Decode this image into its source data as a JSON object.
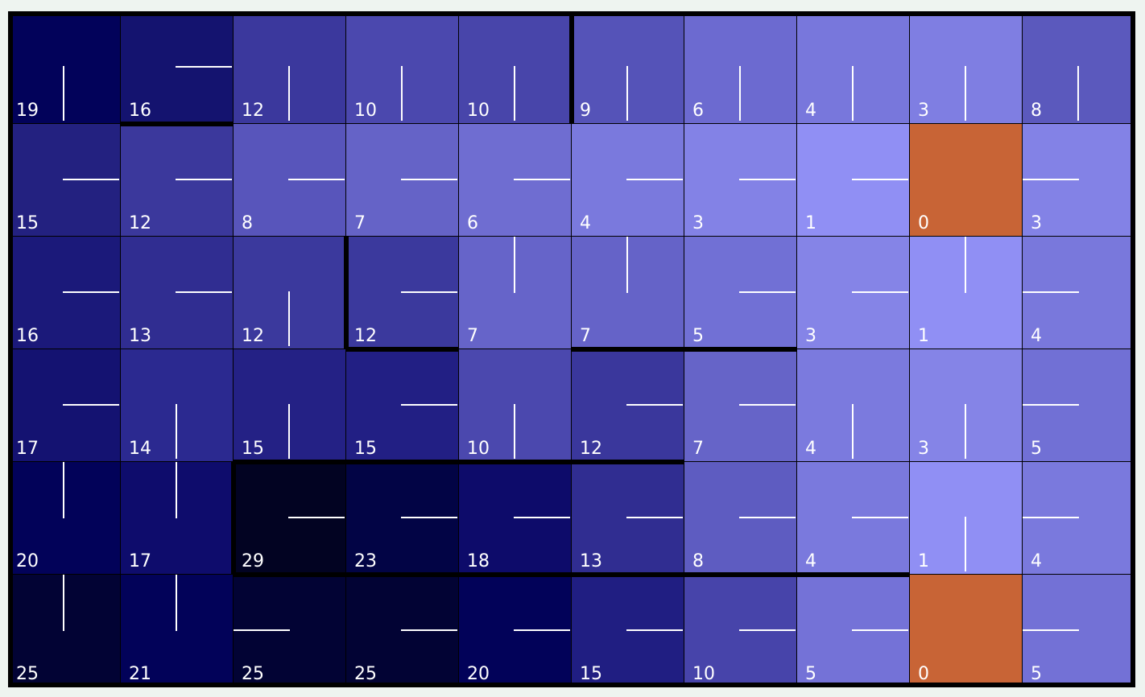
{
  "grid": {
    "rows": 6,
    "cols": 10,
    "cells": [
      [
        {
          "v": "19",
          "a": "up",
          "c": "#02025a"
        },
        {
          "v": "16",
          "a": "right",
          "c": "#14136f"
        },
        {
          "v": "12",
          "a": "up",
          "c": "#3b389d"
        },
        {
          "v": "10",
          "a": "up",
          "c": "#4b48ae"
        },
        {
          "v": "10",
          "a": "up",
          "c": "#4845aa"
        },
        {
          "v": "9",
          "a": "up",
          "c": "#5553b8"
        },
        {
          "v": "6",
          "a": "up",
          "c": "#6c6ad0"
        },
        {
          "v": "4",
          "a": "up",
          "c": "#7877dc"
        },
        {
          "v": "3",
          "a": "up",
          "c": "#7f7ee2"
        },
        {
          "v": "8",
          "a": "up",
          "c": "#5b59bd"
        }
      ],
      [
        {
          "v": "15",
          "a": "right",
          "c": "#232180"
        },
        {
          "v": "12",
          "a": "right",
          "c": "#3b389c"
        },
        {
          "v": "8",
          "a": "right",
          "c": "#5855bb"
        },
        {
          "v": "7",
          "a": "right",
          "c": "#6563c7"
        },
        {
          "v": "6",
          "a": "right",
          "c": "#6f6dd1"
        },
        {
          "v": "4",
          "a": "right",
          "c": "#7a79dd"
        },
        {
          "v": "3",
          "a": "right",
          "c": "#8382e6"
        },
        {
          "v": "1",
          "a": "right",
          "c": "#908ff4"
        },
        {
          "v": "0",
          "a": "",
          "c": "#c86436"
        },
        {
          "v": "3",
          "a": "left",
          "c": "#8382e6"
        }
      ],
      [
        {
          "v": "16",
          "a": "right",
          "c": "#1b197a"
        },
        {
          "v": "13",
          "a": "right",
          "c": "#302d91"
        },
        {
          "v": "12",
          "a": "up",
          "c": "#3b399d"
        },
        {
          "v": "12",
          "a": "right",
          "c": "#3b399d"
        },
        {
          "v": "7",
          "a": "down",
          "c": "#6664c9"
        },
        {
          "v": "7",
          "a": "down",
          "c": "#6563c8"
        },
        {
          "v": "5",
          "a": "right",
          "c": "#7170d5"
        },
        {
          "v": "3",
          "a": "right",
          "c": "#8584e7"
        },
        {
          "v": "1",
          "a": "down",
          "c": "#908ff4"
        },
        {
          "v": "4",
          "a": "left",
          "c": "#7978dc"
        }
      ],
      [
        {
          "v": "17",
          "a": "right",
          "c": "#141271"
        },
        {
          "v": "14",
          "a": "up",
          "c": "#2b2990"
        },
        {
          "v": "15",
          "a": "up",
          "c": "#242185"
        },
        {
          "v": "15",
          "a": "right",
          "c": "#221f84"
        },
        {
          "v": "10",
          "a": "up",
          "c": "#4b48ae"
        },
        {
          "v": "12",
          "a": "right",
          "c": "#3a379c"
        },
        {
          "v": "7",
          "a": "right",
          "c": "#6664c8"
        },
        {
          "v": "4",
          "a": "up",
          "c": "#7b7ade"
        },
        {
          "v": "3",
          "a": "up",
          "c": "#8584e7"
        },
        {
          "v": "5",
          "a": "left",
          "c": "#7170d5"
        }
      ],
      [
        {
          "v": "20",
          "a": "down",
          "c": "#020259"
        },
        {
          "v": "17",
          "a": "down",
          "c": "#0e0c6c"
        },
        {
          "v": "29",
          "a": "right",
          "c": "#020322"
        },
        {
          "v": "23",
          "a": "right",
          "c": "#020445"
        },
        {
          "v": "18",
          "a": "right",
          "c": "#0d0b6a"
        },
        {
          "v": "13",
          "a": "right",
          "c": "#302d91"
        },
        {
          "v": "8",
          "a": "right",
          "c": "#5e5cc1"
        },
        {
          "v": "4",
          "a": "right",
          "c": "#7a79dd"
        },
        {
          "v": "1",
          "a": "up",
          "c": "#908ff4"
        },
        {
          "v": "4",
          "a": "left",
          "c": "#7a79dd"
        }
      ],
      [
        {
          "v": "25",
          "a": "down",
          "c": "#020334"
        },
        {
          "v": "21",
          "a": "down",
          "c": "#020259"
        },
        {
          "v": "25",
          "a": "left",
          "c": "#020334"
        },
        {
          "v": "25",
          "a": "right",
          "c": "#020334"
        },
        {
          "v": "20",
          "a": "right",
          "c": "#020259"
        },
        {
          "v": "15",
          "a": "right",
          "c": "#201e82"
        },
        {
          "v": "10",
          "a": "right",
          "c": "#4744aa"
        },
        {
          "v": "5",
          "a": "right",
          "c": "#7472d7"
        },
        {
          "v": "0",
          "a": "",
          "c": "#c86436"
        },
        {
          "v": "5",
          "a": "left",
          "c": "#7371d6"
        }
      ]
    ],
    "walls": [
      {
        "dir": "h",
        "row": 1,
        "col": 1,
        "len": 1
      },
      {
        "dir": "v",
        "row": 0,
        "col": 5,
        "len": 1
      },
      {
        "dir": "v",
        "row": 2,
        "col": 3,
        "len": 1
      },
      {
        "dir": "h",
        "row": 3,
        "col": 3,
        "len": 1
      },
      {
        "dir": "h",
        "row": 3,
        "col": 5,
        "len": 2
      },
      {
        "dir": "h",
        "row": 4,
        "col": 2,
        "len": 4
      },
      {
        "dir": "v",
        "row": 4,
        "col": 2,
        "len": 1
      },
      {
        "dir": "h",
        "row": 5,
        "col": 2,
        "len": 6
      }
    ]
  }
}
